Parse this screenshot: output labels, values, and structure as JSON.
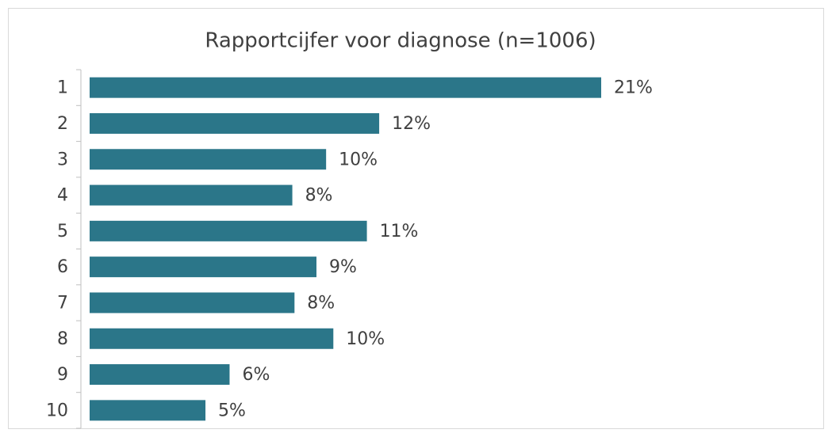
{
  "chart_data": {
    "type": "bar",
    "orientation": "horizontal",
    "title": "Rapportcijfer voor diagnose (n=1006)",
    "categories": [
      "1",
      "2",
      "3",
      "4",
      "5",
      "6",
      "7",
      "8",
      "9",
      "10"
    ],
    "values": [
      21.2,
      12.0,
      9.8,
      8.4,
      11.49,
      9.4,
      8.49,
      10.1,
      5.8,
      4.8
    ],
    "value_labels": [
      "21%",
      "12%",
      "10%",
      "8%",
      "11%",
      "9%",
      "8%",
      "10%",
      "6%",
      "5%"
    ],
    "color": "#2b7689",
    "xlim": [
      0,
      21.2
    ]
  }
}
